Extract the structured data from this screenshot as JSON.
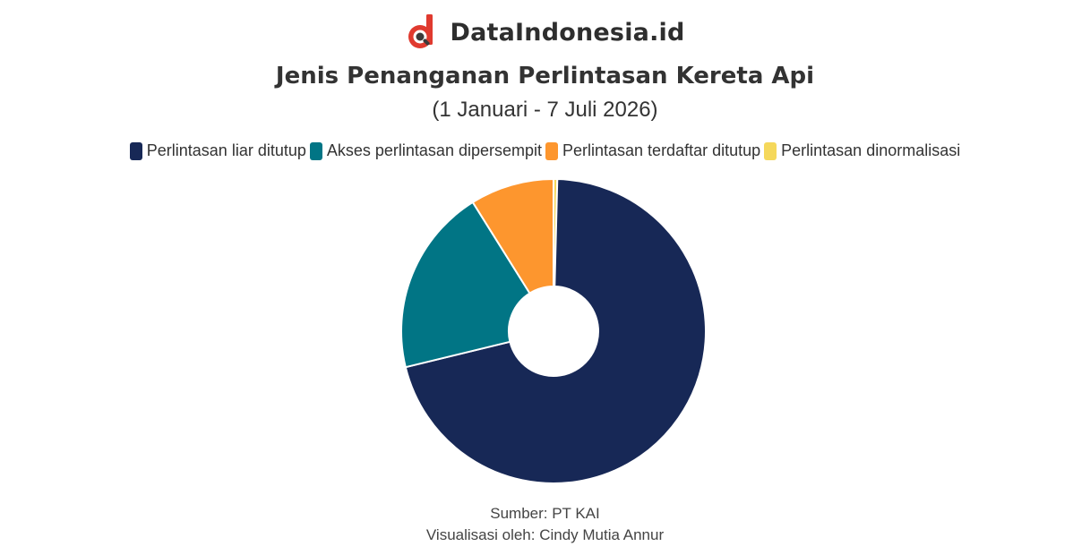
{
  "brand": {
    "name": "DataIndonesia.id",
    "accent_color": "#e03a2f",
    "icon": "magnifier-logo-icon"
  },
  "header": {
    "title": "Jenis Penanganan Perlintasan Kereta Api",
    "subtitle": "(1 Januari - 7 Juli 2026)"
  },
  "chart_data": {
    "type": "pie",
    "title": "Jenis Penanganan Perlintasan Kereta Api",
    "subtitle": "(1 Januari - 7 Juli 2026)",
    "donut": true,
    "legend_position": "top",
    "series": [
      {
        "name": "Perlintasan liar ditutup",
        "value": 70.8,
        "color": "#172856"
      },
      {
        "name": "Akses perlintasan dipersempit",
        "value": 19.9,
        "color": "#017585"
      },
      {
        "name": "Perlintasan terdaftar ditutup",
        "value": 8.9,
        "color": "#fd962e"
      },
      {
        "name": "Perlintasan dinormalisasi",
        "value": 0.4,
        "color": "#f5d85b"
      }
    ],
    "start_series_index": 3
  },
  "footer": {
    "source": "Sumber: PT KAI",
    "credit": "Visualisasi oleh: Cindy Mutia Annur"
  }
}
